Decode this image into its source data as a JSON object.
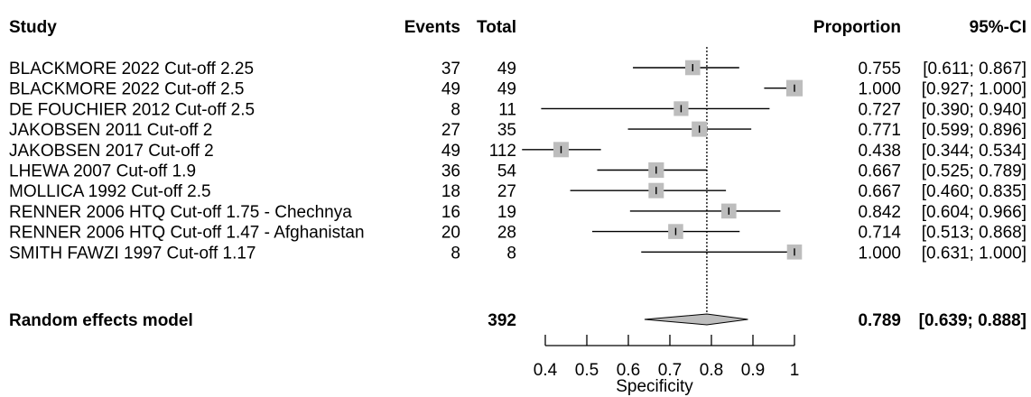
{
  "headers": {
    "study": "Study",
    "events": "Events",
    "total": "Total",
    "proportion": "Proportion",
    "ci": "95%-CI"
  },
  "summary": {
    "label": "Random effects model",
    "total": "392",
    "proportion": "0.789",
    "ci": "[0.639; 0.888]"
  },
  "chart_data": {
    "type": "forest",
    "xlabel": "Specificity",
    "xlim": [
      0.4,
      1.0
    ],
    "ticks": [
      0.4,
      0.5,
      0.6,
      0.7,
      0.8,
      0.9,
      1.0
    ],
    "tick_labels": [
      "0.4",
      "0.5",
      "0.6",
      "0.7",
      "0.8",
      "0.9",
      "1"
    ],
    "reference_line": 0.789,
    "studies": [
      {
        "name": "BLACKMORE 2022 Cut-off 2.25",
        "events": "37",
        "total": "49",
        "proportion": "0.755",
        "ci": "[0.611; 0.867]",
        "est": 0.755,
        "lower": 0.611,
        "upper": 0.867,
        "weight": 0.55
      },
      {
        "name": "BLACKMORE 2022 Cut-off 2.5",
        "events": "49",
        "total": "49",
        "proportion": "1.000",
        "ci": "[0.927; 1.000]",
        "est": 1.0,
        "lower": 0.927,
        "upper": 1.0,
        "weight": 0.68
      },
      {
        "name": "DE FOUCHIER 2012 Cut-off 2.5",
        "events": "8",
        "total": "11",
        "proportion": "0.727",
        "ci": "[0.390; 0.940]",
        "est": 0.727,
        "lower": 0.39,
        "upper": 0.94,
        "weight": 0.52
      },
      {
        "name": "JAKOBSEN 2011 Cut-off 2",
        "events": "27",
        "total": "35",
        "proportion": "0.771",
        "ci": "[0.599; 0.896]",
        "est": 0.771,
        "lower": 0.599,
        "upper": 0.896,
        "weight": 0.58
      },
      {
        "name": "JAKOBSEN 2017 Cut-off 2",
        "events": "49",
        "total": "112",
        "proportion": "0.438",
        "ci": "[0.344; 0.534]",
        "est": 0.438,
        "lower": 0.344,
        "upper": 0.534,
        "weight": 0.58
      },
      {
        "name": "LHEWA 2007 Cut-off 1.9",
        "events": "36",
        "total": "54",
        "proportion": "0.667",
        "ci": "[0.525; 0.789]",
        "est": 0.667,
        "lower": 0.525,
        "upper": 0.789,
        "weight": 0.6
      },
      {
        "name": "MOLLICA 1992 Cut-off 2.5",
        "events": "18",
        "total": "27",
        "proportion": "0.667",
        "ci": "[0.460; 0.835]",
        "est": 0.667,
        "lower": 0.46,
        "upper": 0.835,
        "weight": 0.58
      },
      {
        "name": "RENNER 2006 HTQ Cut-off 1.75 - Chechnya",
        "events": "16",
        "total": "19",
        "proportion": "0.842",
        "ci": "[0.604; 0.966]",
        "est": 0.842,
        "lower": 0.604,
        "upper": 0.966,
        "weight": 0.55
      },
      {
        "name": "RENNER 2006 HTQ Cut-off 1.47 - Afghanistan",
        "events": "20",
        "total": "28",
        "proportion": "0.714",
        "ci": "[0.513; 0.868]",
        "est": 0.714,
        "lower": 0.513,
        "upper": 0.868,
        "weight": 0.55
      },
      {
        "name": "SMITH FAWZI 1997 Cut-off 1.17",
        "events": "8",
        "total": "8",
        "proportion": "1.000",
        "ci": "[0.631; 1.000]",
        "est": 1.0,
        "lower": 0.631,
        "upper": 1.0,
        "weight": 0.55
      }
    ],
    "pooled": {
      "est": 0.789,
      "lower": 0.639,
      "upper": 0.888
    },
    "colors": {
      "square": "#bdbdbd",
      "diamond": "#bdbdbd",
      "line": "#000000"
    }
  }
}
